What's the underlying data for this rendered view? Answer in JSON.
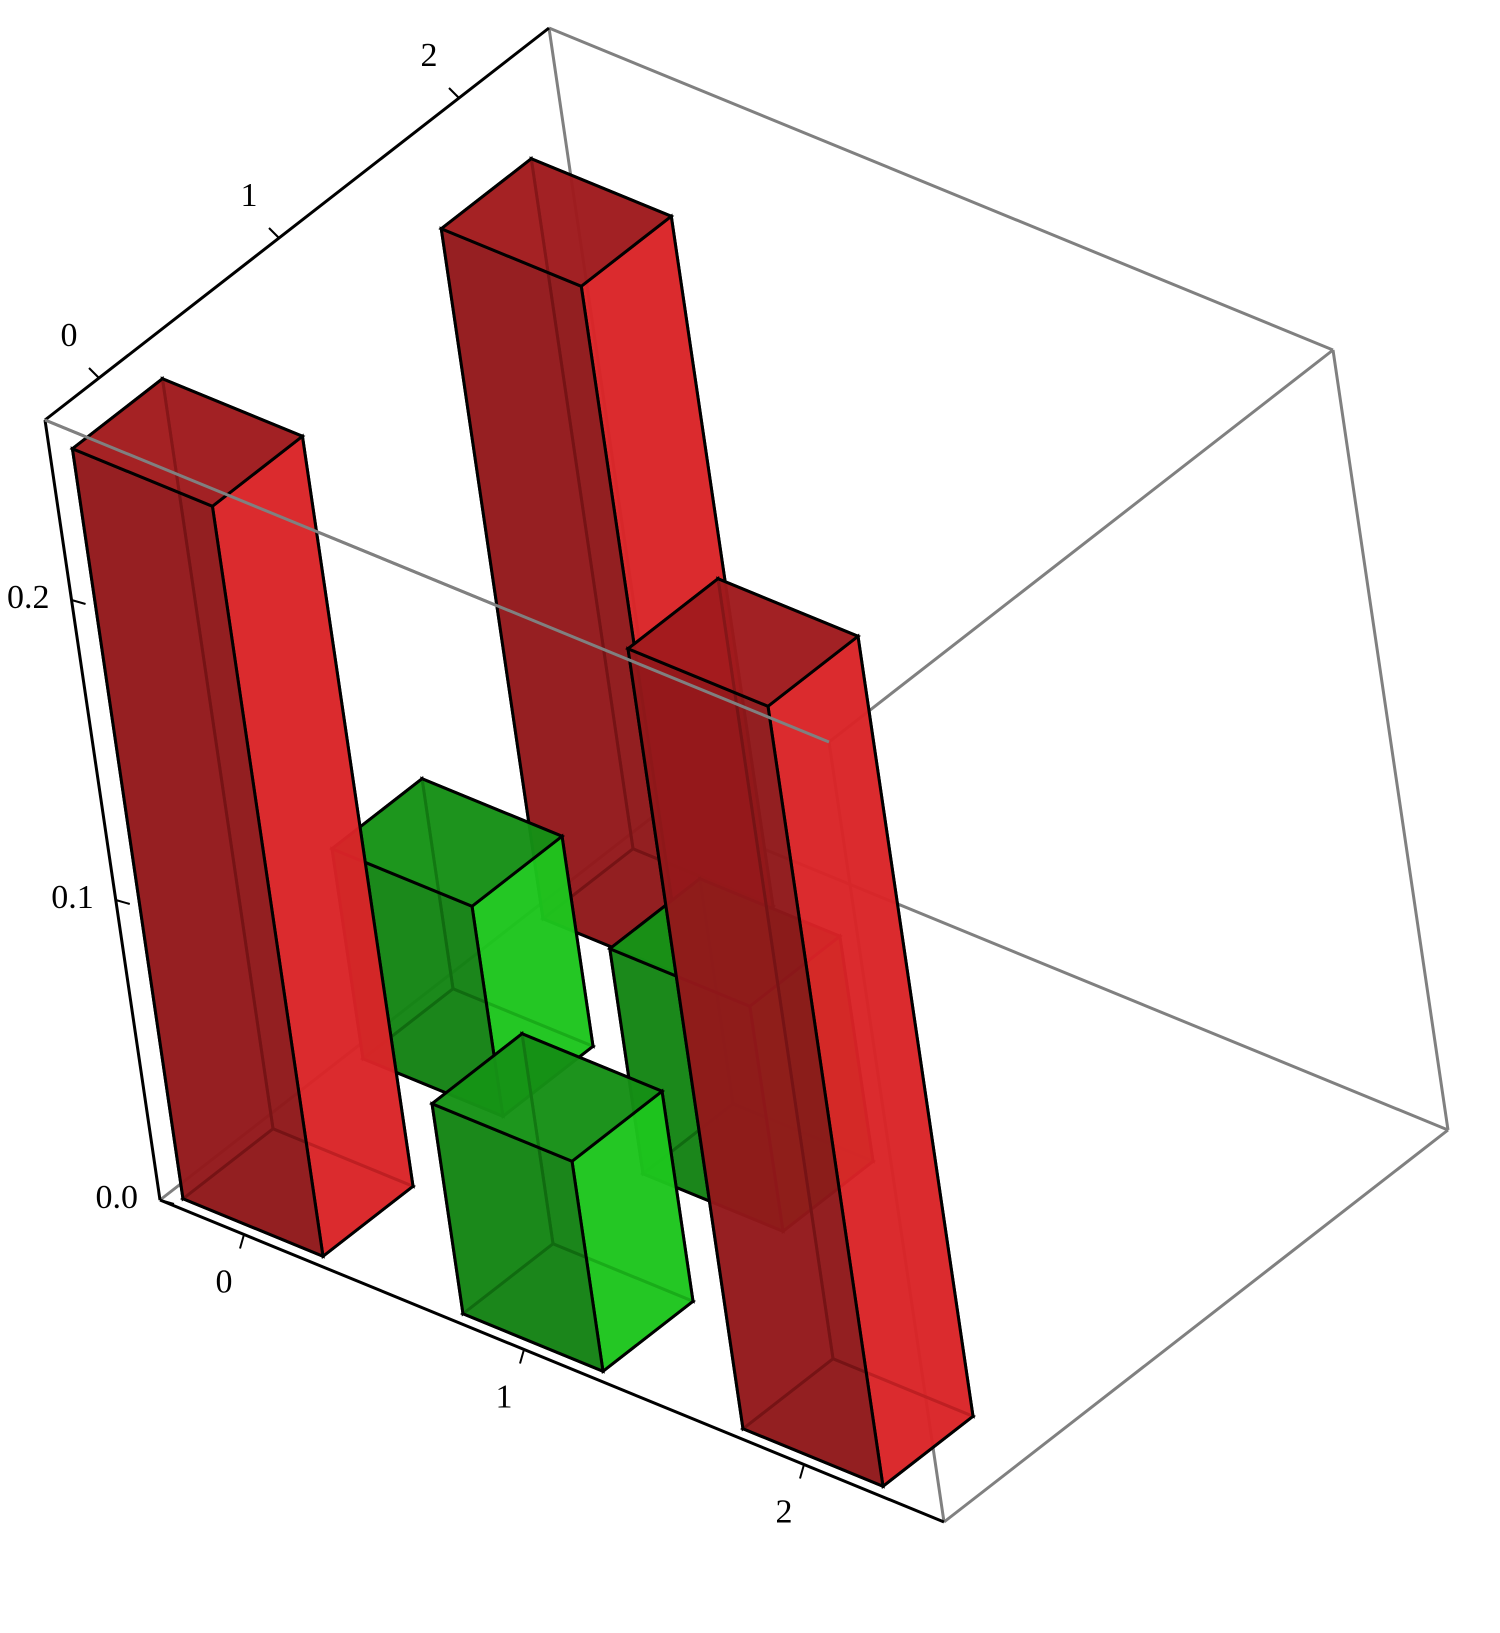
{
  "chart_data": {
    "type": "bar3d",
    "xlim": [
      -0.3,
      2.5
    ],
    "ylim": [
      -0.3,
      2.5
    ],
    "zlim": [
      0,
      0.26
    ],
    "xticks": [
      0,
      1,
      2
    ],
    "yticks": [
      0,
      1,
      2
    ],
    "zticks": [
      {
        "value": 0,
        "label": "0.0"
      },
      0.1,
      0.2
    ],
    "series": [
      {
        "color": "#e8262a",
        "x": [
          0,
          2,
          0
        ],
        "y": [
          0,
          0,
          2
        ],
        "values": [
          0.25,
          0.26,
          0.23
        ]
      },
      {
        "color": "#1ed21e",
        "x": [
          1,
          0,
          1
        ],
        "y": [
          0,
          1,
          1
        ],
        "values": [
          0.07,
          0.07,
          0.075
        ]
      }
    ]
  }
}
